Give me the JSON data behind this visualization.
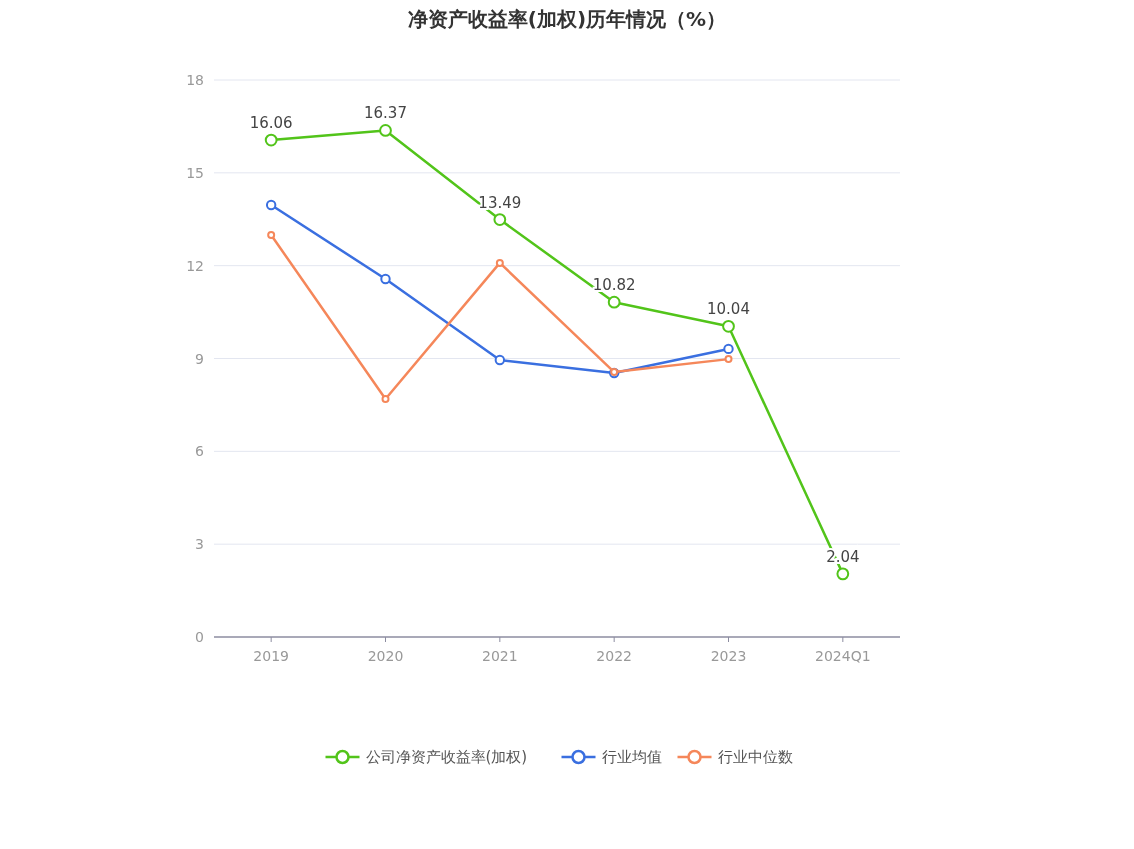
{
  "chart_data": {
    "type": "line",
    "title": "净资产收益率(加权)历年情况（%）",
    "categories": [
      "2019",
      "2020",
      "2021",
      "2022",
      "2023",
      "2024Q1"
    ],
    "series": [
      {
        "name": "公司净资产收益率(加权)",
        "color": "#52c41a",
        "values": [
          16.06,
          16.37,
          13.49,
          10.82,
          10.04,
          2.04
        ],
        "value_labels": [
          "16.06",
          "16.37",
          "13.49",
          "10.82",
          "10.04",
          "2.04"
        ]
      },
      {
        "name": "行业均值",
        "color": "#3a6fe0",
        "values": [
          13.96,
          11.57,
          8.95,
          8.53,
          9.31,
          null
        ]
      },
      {
        "name": "行业中位数",
        "color": "#f5875a",
        "values": [
          12.99,
          7.69,
          12.09,
          8.56,
          8.98,
          null
        ]
      }
    ],
    "ylim": [
      0,
      18
    ],
    "yticks": [
      0,
      3,
      6,
      9,
      12,
      15,
      18
    ],
    "grid": "y",
    "legend": "bottom",
    "marker": "circle",
    "line_style": "solid"
  }
}
